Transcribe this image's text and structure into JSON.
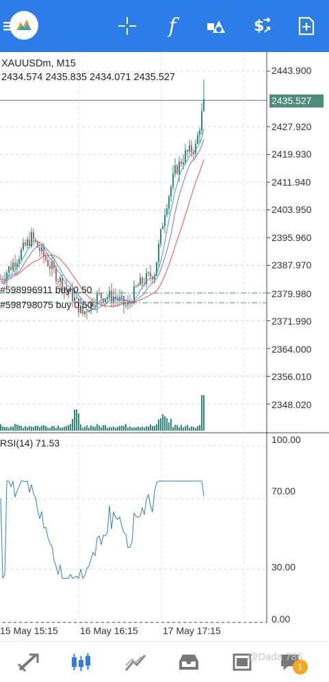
{
  "toolbar": {
    "icons": [
      "menu-icon",
      "metatrader-logo-icon",
      "crosshair-icon",
      "indicators-icon",
      "objects-icon",
      "trade-icon",
      "new-chart-icon"
    ],
    "indicators_glyph": "f"
  },
  "chart": {
    "symbol_label": "XAUUSDm, M15",
    "ohlc_label": "2434.574 2435.835 2434.071 2435.527",
    "current_price": "2435.527",
    "price_ticks": [
      "2443.900",
      "2427.920",
      "2419.930",
      "2411.940",
      "2403.950",
      "2395.960",
      "2387.970",
      "2379.980",
      "2371.990",
      "2364.000",
      "2356.010",
      "2348.020"
    ],
    "time_ticks": [
      "15 May 15:15",
      "16 May 16:15",
      "17 May 17:15"
    ],
    "orders": [
      {
        "label": "#598996911 buy  0.50",
        "price": 2380.0
      },
      {
        "label": "#598798075 buy  0.50",
        "price": 2377.2
      }
    ],
    "rsi_label": "RSI(14) 71.53",
    "rsi_ticks": [
      "100.00",
      "70.00",
      "30.00",
      "0.00"
    ],
    "colors": {
      "bull": "#2a8c77",
      "bear": "#c06060",
      "ma_fast": "#3aa6b9",
      "ma_mid": "#7a6fcf",
      "ma_slow": "#d9534f",
      "rsi": "#2f7fc1",
      "orders": "#2aa28c"
    }
  },
  "nav": {
    "items": [
      "quotes-icon",
      "chart-icon",
      "trade-icon",
      "history-icon",
      "messages-icon",
      "chat-icon"
    ],
    "badge": "1",
    "watermark": "@Dada 786"
  }
}
